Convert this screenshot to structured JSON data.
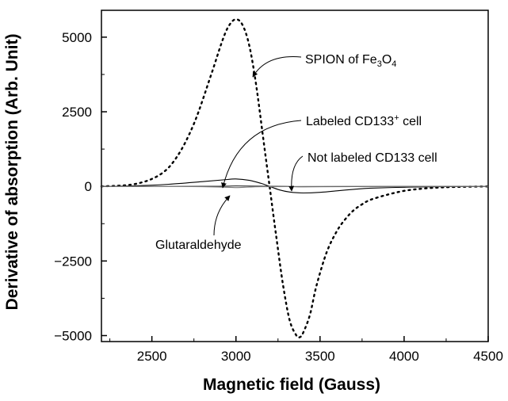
{
  "chart_data": {
    "type": "line",
    "title": "",
    "xlabel": "Magnetic field (Gauss)",
    "ylabel": "Derivative of absorption (Arb. Unit)",
    "xlim": [
      2200,
      4500
    ],
    "ylim": [
      -5200,
      5900
    ],
    "xticks": [
      2500,
      3000,
      3500,
      4000,
      4500
    ],
    "yticks": [
      -5000,
      -2500,
      0,
      2500,
      5000
    ],
    "grid": false,
    "legend": "none",
    "series": [
      {
        "style": "dotted",
        "color": "#000000",
        "x": [
          2200,
          2400,
          2550,
          2650,
          2750,
          2850,
          2920,
          2960,
          3000,
          3040,
          3080,
          3120,
          3160,
          3200,
          3240,
          3280,
          3320,
          3360,
          3380,
          3400,
          3440,
          3480,
          3540,
          3600,
          3650,
          3700,
          3750,
          3800,
          3900,
          4000,
          4100,
          4200,
          4300,
          4500
        ],
        "y": [
          0,
          80,
          400,
          1000,
          2100,
          3700,
          4900,
          5400,
          5600,
          5400,
          4700,
          3400,
          1700,
          0,
          -1700,
          -3300,
          -4500,
          -5000,
          -5050,
          -4900,
          -4300,
          -3300,
          -2200,
          -1500,
          -1100,
          -800,
          -600,
          -450,
          -280,
          -150,
          -80,
          -40,
          -20,
          0
        ]
      },
      {
        "style": "solid",
        "color": "#000000",
        "x": [
          2200,
          2400,
          2600,
          2800,
          2950,
          3000,
          3080,
          3150,
          3200,
          3260,
          3320,
          3400,
          3500,
          3600,
          3700,
          3800,
          4000,
          4200,
          4500
        ],
        "y": [
          0,
          20,
          70,
          160,
          230,
          250,
          200,
          100,
          0,
          -120,
          -190,
          -220,
          -200,
          -150,
          -100,
          -60,
          -30,
          -10,
          0
        ]
      },
      {
        "style": "solid",
        "color": "#333333",
        "x": [
          2200,
          2500,
          2900,
          3000,
          3100,
          3200,
          3300,
          3350,
          3400,
          3500,
          3700,
          4000,
          4500
        ],
        "y": [
          0,
          0,
          5,
          15,
          10,
          5,
          0,
          -10,
          -15,
          -10,
          -5,
          0,
          0
        ]
      },
      {
        "style": "solid",
        "color": "#777777",
        "x": [
          2200,
          2500,
          2800,
          2950,
          3000,
          3050,
          3150,
          3300,
          3600,
          4000,
          4500
        ],
        "y": [
          0,
          0,
          -10,
          -30,
          -40,
          -30,
          -10,
          -5,
          0,
          0,
          0
        ]
      }
    ],
    "annotations": [
      {
        "text_pre": "SPION of Fe",
        "sub1": "3",
        "mid": "O",
        "sub2": "4"
      },
      {
        "text_pre": "Labeled CD133",
        "sup": "+",
        "text_post": " cell"
      },
      {
        "text": "Not labeled CD133 cell"
      },
      {
        "text": "Glutaraldehyde"
      }
    ]
  }
}
